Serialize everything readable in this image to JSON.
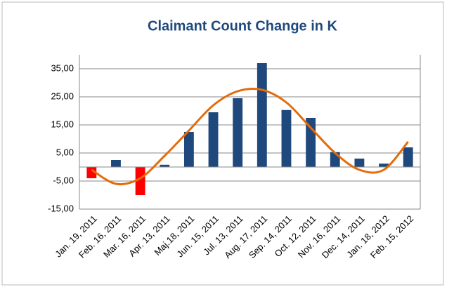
{
  "chart_data": {
    "type": "bar",
    "title": "Claimant Count Change in K",
    "categories": [
      "Jan. 19, 2011",
      "Feb. 16, 2011",
      "Mar. 16, 2011",
      "Apr. 13, 2011",
      "Maj.18, 2011",
      "Jun. 15, 2011",
      "Jul. 13, 2011",
      "Aug. 17, 2011",
      "Sep. 14, 2011",
      "Oct. 12, 2011",
      "Nov. 16, 2011",
      "Dec. 14, 2011",
      "Jan. 18, 2012",
      "Feb. 15, 2012"
    ],
    "values": [
      -4,
      2.5,
      -10,
      0.8,
      12.5,
      19.5,
      24.5,
      37,
      20.3,
      17.5,
      5.3,
      3,
      1.2,
      7
    ],
    "colors": [
      "#ff0000",
      "#1f497d",
      "#ff0000",
      "#1f497d",
      "#1f497d",
      "#1f497d",
      "#1f497d",
      "#1f497d",
      "#1f497d",
      "#1f497d",
      "#1f497d",
      "#1f497d",
      "#1f497d",
      "#1f497d"
    ],
    "trend": {
      "color": "#e36c09",
      "values": [
        -1,
        -6,
        -4,
        4,
        13,
        22,
        27,
        27.5,
        23,
        14,
        5,
        -1,
        -1,
        9
      ]
    },
    "ylim": [
      -15,
      40
    ],
    "yticks": [
      {
        "value": -15,
        "label": "-15,00"
      },
      {
        "value": -5,
        "label": "-5,00"
      },
      {
        "value": 5,
        "label": "5,00"
      },
      {
        "value": 15,
        "label": "15,00"
      },
      {
        "value": 25,
        "label": "25,00"
      },
      {
        "value": 35,
        "label": "35,00"
      }
    ],
    "grid": true
  }
}
